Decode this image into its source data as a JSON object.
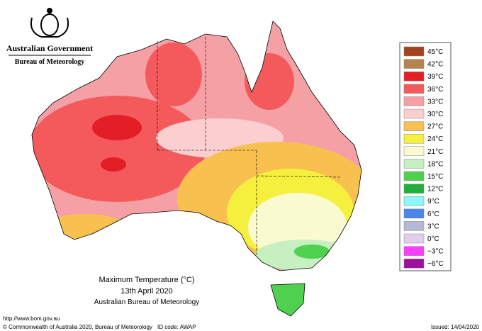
{
  "header": {
    "agency": "Australian Government",
    "bureau": "Bureau of Meteorology"
  },
  "caption": {
    "title": "Maximum Temperature (°C)",
    "date": "13th April 2020",
    "source": "Australian Bureau of Meteorology"
  },
  "legend": {
    "items": [
      {
        "label": "45°C",
        "color": "#a3421c"
      },
      {
        "label": "42°C",
        "color": "#b8824e"
      },
      {
        "label": "39°C",
        "color": "#e41e26"
      },
      {
        "label": "36°C",
        "color": "#f45a5c"
      },
      {
        "label": "33°C",
        "color": "#f5a0a5"
      },
      {
        "label": "30°C",
        "color": "#fbcfd0"
      },
      {
        "label": "27°C",
        "color": "#f8c14f"
      },
      {
        "label": "24°C",
        "color": "#f5f03e"
      },
      {
        "label": "21°C",
        "color": "#fafad0"
      },
      {
        "label": "18°C",
        "color": "#c6f0c0"
      },
      {
        "label": "15°C",
        "color": "#4fd04f"
      },
      {
        "label": "12°C",
        "color": "#1faf3a"
      },
      {
        "label": "9°C",
        "color": "#8cf8f8"
      },
      {
        "label": "6°C",
        "color": "#4a86ee"
      },
      {
        "label": "3°C",
        "color": "#b6b8d8"
      },
      {
        "label": "0°C",
        "color": "#e2cdf0"
      },
      {
        "label": "−3°C",
        "color": "#ff3cff"
      },
      {
        "label": "−6°C",
        "color": "#a0109e"
      }
    ]
  },
  "footer": {
    "url": "http://www.bom.gov.au",
    "copyright": "© Commonwealth of Australia 2020, Bureau of Meteorology",
    "id_code": "ID code: AWAP",
    "issued": "Issued: 14/04/2020"
  }
}
